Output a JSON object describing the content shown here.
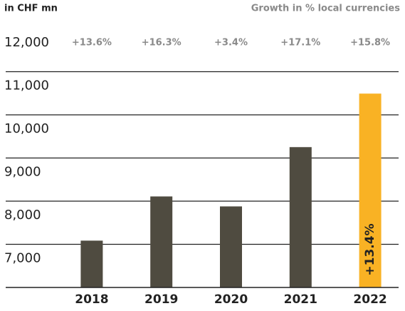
{
  "chart_data": {
    "type": "bar",
    "y_axis_label": "in CHF mn",
    "annotation_header": "Growth in % local currencies",
    "categories": [
      "2018",
      "2019",
      "2020",
      "2021",
      "2022"
    ],
    "values": [
      7085,
      8109,
      7878,
      9252,
      10492
    ],
    "colors": [
      "#4f4b40",
      "#4f4b40",
      "#4f4b40",
      "#4f4b40",
      "#f9b224"
    ],
    "growth_labels": [
      "+13.6%",
      "+16.3%",
      "+3.4%",
      "+17.1%",
      "+15.8%"
    ],
    "bar_annotation": "+13.4%",
    "ylim": [
      6000,
      12000
    ],
    "yticks": [
      {
        "value": 7000,
        "label": "7,000"
      },
      {
        "value": 8000,
        "label": "8,000"
      },
      {
        "value": 9000,
        "label": "9,000"
      },
      {
        "value": 10000,
        "label": "10,000"
      },
      {
        "value": 11000,
        "label": "11,000"
      },
      {
        "value": 12000,
        "label": "12,000"
      }
    ],
    "grid": true
  }
}
